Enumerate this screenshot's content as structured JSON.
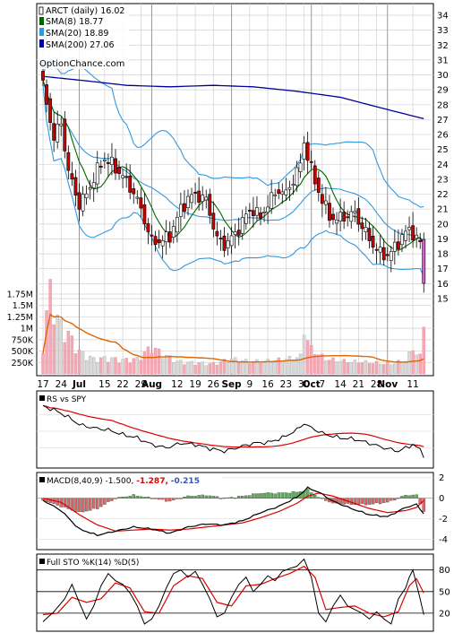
{
  "chart_data": {
    "type": "stock-chart",
    "title": "ARCT (daily) 16.02",
    "ticker": "ARCT",
    "last_price": 16.02,
    "watermark": "OptionChance.com",
    "colors": {
      "up_candle": "#ffffff",
      "down_candle": "#cc0000",
      "sma8": "#006600",
      "sma20": "#3399dd",
      "sma200": "#000099",
      "volume_up": "#d9d9d9",
      "volume_down": "#f4a9b5",
      "volume_avg": "#dd6600",
      "rs_line": "#000000",
      "rs_avg": "#dd0000",
      "macd_hist_up": "#66aa66",
      "macd_hist_down": "#dd6666"
    },
    "price_panel": {
      "ylim": [
        14,
        34.5
      ],
      "y_ticks": [
        15,
        16,
        17,
        18,
        19,
        20,
        21,
        22,
        23,
        24,
        25,
        26,
        27,
        28,
        29,
        30,
        31,
        32,
        33,
        34
      ],
      "grid": true,
      "legend_position": "top-left",
      "legend": [
        {
          "label": "ARCT (daily) 16.02",
          "color": "#000000"
        },
        {
          "label": "SMA(8) 18.77",
          "color": "#006600"
        },
        {
          "label": "SMA(20) 18.89",
          "color": "#3399dd"
        },
        {
          "label": "SMA(200) 27.06",
          "color": "#000099"
        }
      ],
      "sma200_anchor_values": [
        29.9,
        29.6,
        29.3,
        29.2,
        29.3,
        29.2,
        28.9,
        28.5,
        27.8,
        27.06
      ]
    },
    "volume_panel": {
      "ylim": [
        0,
        2000000
      ],
      "y_ticks": [
        {
          "label": "1.75M",
          "value": 1750000
        },
        {
          "label": "1.5M",
          "value": 1500000
        },
        {
          "label": "1.25M",
          "value": 1250000
        },
        {
          "label": "1M",
          "value": 1000000
        },
        {
          "label": "750K",
          "value": 750000
        },
        {
          "label": "500K",
          "value": 500000
        },
        {
          "label": "250K",
          "value": 250000
        }
      ]
    },
    "x_ticks": [
      {
        "label": "17",
        "index": 0
      },
      {
        "label": "24",
        "index": 5
      },
      {
        "label": "Jul",
        "index": 10,
        "bold": true
      },
      {
        "label": "15",
        "index": 17
      },
      {
        "label": "22",
        "index": 22
      },
      {
        "label": "29",
        "index": 27
      },
      {
        "label": "Aug",
        "index": 30,
        "bold": true
      },
      {
        "label": "12",
        "index": 37
      },
      {
        "label": "19",
        "index": 42
      },
      {
        "label": "26",
        "index": 47
      },
      {
        "label": "Sep",
        "index": 52,
        "bold": true
      },
      {
        "label": "9",
        "index": 57
      },
      {
        "label": "16",
        "index": 62
      },
      {
        "label": "23",
        "index": 67
      },
      {
        "label": "30",
        "index": 72
      },
      {
        "label": "Oct",
        "index": 74,
        "bold": true
      },
      {
        "label": "7",
        "index": 77
      },
      {
        "label": "14",
        "index": 82
      },
      {
        "label": "21",
        "index": 87
      },
      {
        "label": "28",
        "index": 92
      },
      {
        "label": "Nov",
        "index": 95,
        "bold": true
      },
      {
        "label": "11",
        "index": 102
      }
    ],
    "close_anchors": [
      [
        0,
        29.2
      ],
      [
        3,
        25.8
      ],
      [
        5,
        26.8
      ],
      [
        7,
        23.5
      ],
      [
        10,
        21.3
      ],
      [
        12,
        22.0
      ],
      [
        15,
        23.6
      ],
      [
        17,
        24.4
      ],
      [
        19,
        24.0
      ],
      [
        22,
        23.2
      ],
      [
        25,
        22.1
      ],
      [
        27,
        21.0
      ],
      [
        30,
        18.8
      ],
      [
        33,
        18.9
      ],
      [
        35,
        19.2
      ],
      [
        38,
        21.0
      ],
      [
        40,
        21.7
      ],
      [
        42,
        22.0
      ],
      [
        45,
        21.6
      ],
      [
        48,
        19.0
      ],
      [
        50,
        18.6
      ],
      [
        53,
        19.3
      ],
      [
        56,
        20.6
      ],
      [
        58,
        21.0
      ],
      [
        60,
        20.4
      ],
      [
        62,
        21.4
      ],
      [
        65,
        22.3
      ],
      [
        67,
        22.0
      ],
      [
        69,
        23.0
      ],
      [
        71,
        24.0
      ],
      [
        72,
        25.5
      ],
      [
        73,
        24.6
      ],
      [
        75,
        22.8
      ],
      [
        77,
        21.6
      ],
      [
        79,
        20.5
      ],
      [
        81,
        20.3
      ],
      [
        83,
        20.5
      ],
      [
        86,
        20.7
      ],
      [
        88,
        19.8
      ],
      [
        91,
        18.6
      ],
      [
        93,
        18.0
      ],
      [
        95,
        17.9
      ],
      [
        97,
        18.4
      ],
      [
        99,
        19.2
      ],
      [
        101,
        19.6
      ],
      [
        103,
        19.1
      ],
      [
        104,
        18.6
      ],
      [
        105,
        16.02
      ]
    ],
    "volume_anchors": [
      [
        0,
        600000
      ],
      [
        2,
        1750000
      ],
      [
        4,
        1100000
      ],
      [
        6,
        900000
      ],
      [
        8,
        700000
      ],
      [
        10,
        450000
      ],
      [
        14,
        300000
      ],
      [
        18,
        320000
      ],
      [
        22,
        280000
      ],
      [
        26,
        300000
      ],
      [
        30,
        550000
      ],
      [
        33,
        400000
      ],
      [
        37,
        250000
      ],
      [
        42,
        220000
      ],
      [
        47,
        200000
      ],
      [
        52,
        300000
      ],
      [
        57,
        250000
      ],
      [
        62,
        260000
      ],
      [
        67,
        300000
      ],
      [
        71,
        350000
      ],
      [
        72,
        900000
      ],
      [
        74,
        500000
      ],
      [
        78,
        300000
      ],
      [
        84,
        250000
      ],
      [
        90,
        230000
      ],
      [
        96,
        200000
      ],
      [
        100,
        280000
      ],
      [
        102,
        500000
      ],
      [
        104,
        350000
      ],
      [
        105,
        1000000
      ]
    ],
    "rs_panel": {
      "label": "RS vs SPY",
      "rs_anchors": [
        [
          0,
          0.88
        ],
        [
          4,
          0.8
        ],
        [
          8,
          0.68
        ],
        [
          10,
          0.6
        ],
        [
          14,
          0.55
        ],
        [
          18,
          0.52
        ],
        [
          22,
          0.45
        ],
        [
          26,
          0.4
        ],
        [
          30,
          0.3
        ],
        [
          34,
          0.25
        ],
        [
          38,
          0.32
        ],
        [
          42,
          0.3
        ],
        [
          46,
          0.24
        ],
        [
          50,
          0.2
        ],
        [
          54,
          0.26
        ],
        [
          58,
          0.32
        ],
        [
          62,
          0.33
        ],
        [
          66,
          0.4
        ],
        [
          70,
          0.52
        ],
        [
          72,
          0.62
        ],
        [
          74,
          0.55
        ],
        [
          78,
          0.45
        ],
        [
          82,
          0.4
        ],
        [
          86,
          0.38
        ],
        [
          90,
          0.32
        ],
        [
          94,
          0.25
        ],
        [
          98,
          0.2
        ],
        [
          102,
          0.3
        ],
        [
          104,
          0.22
        ],
        [
          105,
          0.1
        ]
      ]
    },
    "macd_panel": {
      "label": "MACD(8,40,9) -1.500,",
      "macd_value": "-1.287,",
      "signal_value": "-0.215",
      "ylim": [
        -5,
        2.5
      ],
      "y_ticks": [
        2,
        0,
        -2,
        -4
      ],
      "macd_anchors": [
        [
          0,
          -0.2
        ],
        [
          5,
          -1.2
        ],
        [
          10,
          -3.0
        ],
        [
          15,
          -3.6
        ],
        [
          20,
          -3.2
        ],
        [
          25,
          -2.8
        ],
        [
          30,
          -3.0
        ],
        [
          35,
          -3.4
        ],
        [
          40,
          -2.8
        ],
        [
          45,
          -2.5
        ],
        [
          50,
          -2.6
        ],
        [
          55,
          -2.2
        ],
        [
          60,
          -1.4
        ],
        [
          65,
          -0.8
        ],
        [
          70,
          0.1
        ],
        [
          73,
          1.0
        ],
        [
          76,
          0.6
        ],
        [
          80,
          -0.3
        ],
        [
          85,
          -1.0
        ],
        [
          90,
          -1.6
        ],
        [
          95,
          -1.8
        ],
        [
          100,
          -0.9
        ],
        [
          103,
          -0.6
        ],
        [
          105,
          -1.5
        ]
      ],
      "signal_anchors": [
        [
          0,
          0.0
        ],
        [
          5,
          -0.4
        ],
        [
          10,
          -1.6
        ],
        [
          15,
          -2.6
        ],
        [
          20,
          -3.2
        ],
        [
          25,
          -3.1
        ],
        [
          30,
          -3.0
        ],
        [
          35,
          -3.1
        ],
        [
          40,
          -3.0
        ],
        [
          45,
          -2.8
        ],
        [
          50,
          -2.6
        ],
        [
          55,
          -2.4
        ],
        [
          60,
          -1.9
        ],
        [
          65,
          -1.3
        ],
        [
          70,
          -0.5
        ],
        [
          73,
          0.2
        ],
        [
          76,
          0.5
        ],
        [
          80,
          0.2
        ],
        [
          85,
          -0.4
        ],
        [
          90,
          -1.0
        ],
        [
          95,
          -1.4
        ],
        [
          100,
          -1.2
        ],
        [
          103,
          -0.9
        ],
        [
          105,
          -0.215
        ]
      ]
    },
    "sto_panel": {
      "label": "Full STO %K(14) %D(5)",
      "ylim": [
        0,
        100
      ],
      "y_ticks": [
        80,
        50,
        20
      ],
      "k_anchors": [
        [
          0,
          8
        ],
        [
          3,
          22
        ],
        [
          6,
          40
        ],
        [
          8,
          60
        ],
        [
          10,
          35
        ],
        [
          12,
          12
        ],
        [
          14,
          30
        ],
        [
          16,
          58
        ],
        [
          18,
          75
        ],
        [
          20,
          65
        ],
        [
          22,
          60
        ],
        [
          24,
          48
        ],
        [
          26,
          30
        ],
        [
          28,
          5
        ],
        [
          30,
          12
        ],
        [
          32,
          30
        ],
        [
          34,
          55
        ],
        [
          36,
          75
        ],
        [
          38,
          80
        ],
        [
          40,
          70
        ],
        [
          42,
          78
        ],
        [
          44,
          60
        ],
        [
          46,
          40
        ],
        [
          48,
          15
        ],
        [
          50,
          20
        ],
        [
          52,
          42
        ],
        [
          54,
          60
        ],
        [
          56,
          70
        ],
        [
          58,
          50
        ],
        [
          60,
          60
        ],
        [
          62,
          72
        ],
        [
          64,
          65
        ],
        [
          66,
          78
        ],
        [
          68,
          82
        ],
        [
          70,
          85
        ],
        [
          72,
          95
        ],
        [
          74,
          70
        ],
        [
          76,
          20
        ],
        [
          78,
          8
        ],
        [
          80,
          30
        ],
        [
          82,
          45
        ],
        [
          84,
          30
        ],
        [
          86,
          25
        ],
        [
          88,
          20
        ],
        [
          90,
          12
        ],
        [
          92,
          22
        ],
        [
          94,
          12
        ],
        [
          96,
          5
        ],
        [
          98,
          40
        ],
        [
          100,
          55
        ],
        [
          101,
          70
        ],
        [
          102,
          80
        ],
        [
          103,
          60
        ],
        [
          104,
          40
        ],
        [
          105,
          18
        ]
      ],
      "d_anchors": [
        [
          0,
          18
        ],
        [
          4,
          20
        ],
        [
          8,
          42
        ],
        [
          12,
          35
        ],
        [
          16,
          40
        ],
        [
          20,
          62
        ],
        [
          24,
          55
        ],
        [
          28,
          22
        ],
        [
          32,
          20
        ],
        [
          36,
          58
        ],
        [
          40,
          72
        ],
        [
          44,
          68
        ],
        [
          48,
          35
        ],
        [
          52,
          30
        ],
        [
          56,
          58
        ],
        [
          60,
          60
        ],
        [
          64,
          68
        ],
        [
          68,
          75
        ],
        [
          72,
          85
        ],
        [
          75,
          70
        ],
        [
          78,
          25
        ],
        [
          82,
          28
        ],
        [
          86,
          30
        ],
        [
          90,
          20
        ],
        [
          94,
          15
        ],
        [
          98,
          22
        ],
        [
          101,
          58
        ],
        [
          103,
          68
        ],
        [
          105,
          48
        ]
      ]
    }
  }
}
